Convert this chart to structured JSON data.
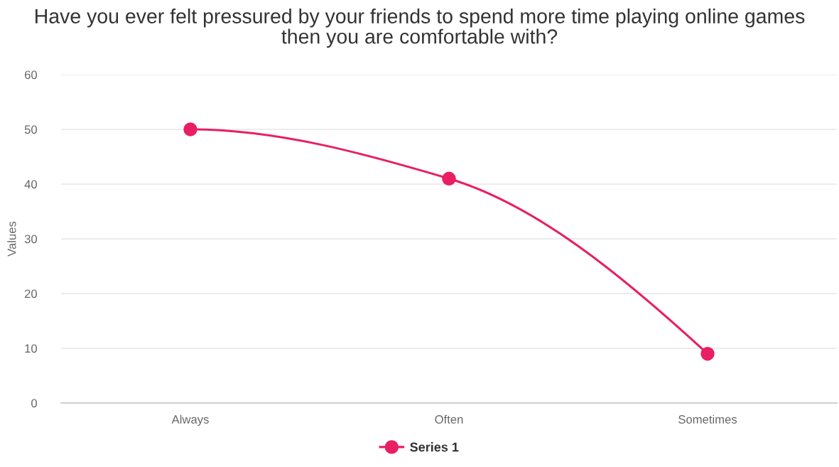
{
  "chart_data": {
    "type": "line",
    "title": "Have you ever felt pressured by your friends to spend more time playing online games\nthen you are comfortable with?",
    "ylabel": "Values",
    "categories": [
      "Always",
      "Often",
      "Sometimes"
    ],
    "series": [
      {
        "name": "Series 1",
        "color": "#e91e63",
        "values": [
          50,
          41,
          9
        ]
      }
    ],
    "ylim": [
      0,
      60
    ],
    "yticks": [
      0,
      10,
      20,
      30,
      40,
      50,
      60
    ],
    "grid": "y",
    "legend": "bottom",
    "marker": "circle",
    "line_style": "solid"
  }
}
